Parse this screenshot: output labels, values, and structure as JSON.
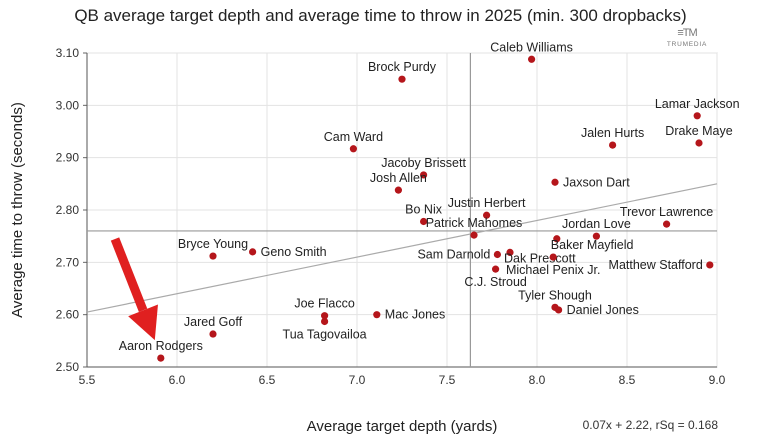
{
  "title": "QB average target depth and average time to throw in 2025 (min. 300 dropbacks)",
  "logo": {
    "mark": "≡TM",
    "text": "TRUMEDIA"
  },
  "fit_label": "0.07x + 2.22, rSq = 0.168",
  "colors": {
    "point": "#b5161b",
    "arrow": "#e02020",
    "grid": "#e3e3e3",
    "ref_line": "#999999",
    "trend": "#aaaaaa"
  },
  "chart_data": {
    "type": "scatter",
    "title": "QB average target depth and average time to throw in 2025 (min. 300 dropbacks)",
    "xlabel": "Average target depth (yards)",
    "ylabel": "Average time to throw (seconds)",
    "xlim": [
      5.5,
      9.0
    ],
    "ylim": [
      2.5,
      3.1
    ],
    "xticks": [
      "5.5",
      "6.0",
      "6.5",
      "7.0",
      "7.5",
      "8.0",
      "8.5",
      "9.0"
    ],
    "yticks": [
      "2.50",
      "2.60",
      "2.70",
      "2.80",
      "2.90",
      "3.00",
      "3.10"
    ],
    "grid": true,
    "reference_lines": {
      "x": 7.63,
      "y": 2.76
    },
    "trendline": {
      "slope": 0.07,
      "intercept": 2.22
    },
    "points": [
      {
        "name": "Caleb Williams",
        "x": 7.97,
        "y": 3.088,
        "pos": "above"
      },
      {
        "name": "Brock Purdy",
        "x": 7.25,
        "y": 3.05,
        "pos": "above"
      },
      {
        "name": "Lamar Jackson",
        "x": 8.89,
        "y": 2.98,
        "pos": "above"
      },
      {
        "name": "Drake Maye",
        "x": 8.9,
        "y": 2.928,
        "pos": "above"
      },
      {
        "name": "Jalen Hurts",
        "x": 8.42,
        "y": 2.924,
        "pos": "above"
      },
      {
        "name": "Cam Ward",
        "x": 6.98,
        "y": 2.917,
        "pos": "above"
      },
      {
        "name": "Jacoby Brissett",
        "x": 7.37,
        "y": 2.867,
        "pos": "above"
      },
      {
        "name": "Jaxson Dart",
        "x": 8.1,
        "y": 2.853,
        "pos": "right"
      },
      {
        "name": "Josh Allen",
        "x": 7.23,
        "y": 2.838,
        "pos": "above"
      },
      {
        "name": "Justin Herbert",
        "x": 7.72,
        "y": 2.79,
        "pos": "above"
      },
      {
        "name": "Bo Nix",
        "x": 7.37,
        "y": 2.778,
        "pos": "above"
      },
      {
        "name": "Trevor Lawrence",
        "x": 8.72,
        "y": 2.773,
        "pos": "above"
      },
      {
        "name": "Jordan Love",
        "x": 8.33,
        "y": 2.75,
        "pos": "above"
      },
      {
        "name": "Patrick Mahomes",
        "x": 7.65,
        "y": 2.752,
        "pos": "above"
      },
      {
        "name": "Baker Mayfield",
        "x": 8.11,
        "y": 2.745,
        "pos": "right-low"
      },
      {
        "name": "Bryce Young",
        "x": 6.2,
        "y": 2.712,
        "pos": "above"
      },
      {
        "name": "Geno Smith",
        "x": 6.42,
        "y": 2.72,
        "pos": "right"
      },
      {
        "name": "Sam Darnold",
        "x": 7.78,
        "y": 2.715,
        "pos": "left"
      },
      {
        "name": "Dak Prescott",
        "x": 7.85,
        "y": 2.719,
        "pos": "right-low"
      },
      {
        "name": "Michael Penix Jr.",
        "x": 8.09,
        "y": 2.71,
        "pos": "below"
      },
      {
        "name": "Matthew Stafford",
        "x": 8.96,
        "y": 2.695,
        "pos": "left"
      },
      {
        "name": "C.J. Stroud",
        "x": 7.77,
        "y": 2.687,
        "pos": "below"
      },
      {
        "name": "Tyler Shough",
        "x": 8.1,
        "y": 2.614,
        "pos": "above"
      },
      {
        "name": "Daniel Jones",
        "x": 8.12,
        "y": 2.609,
        "pos": "right"
      },
      {
        "name": "Joe Flacco",
        "x": 6.82,
        "y": 2.598,
        "pos": "above"
      },
      {
        "name": "Mac Jones",
        "x": 7.11,
        "y": 2.6,
        "pos": "right"
      },
      {
        "name": "Tua Tagovailoa",
        "x": 6.82,
        "y": 2.587,
        "pos": "below"
      },
      {
        "name": "Jared Goff",
        "x": 6.2,
        "y": 2.563,
        "pos": "above"
      },
      {
        "name": "Aaron Rodgers",
        "x": 5.91,
        "y": 2.517,
        "pos": "above"
      }
    ],
    "annotation": {
      "type": "arrow",
      "target": "Aaron Rodgers"
    }
  }
}
